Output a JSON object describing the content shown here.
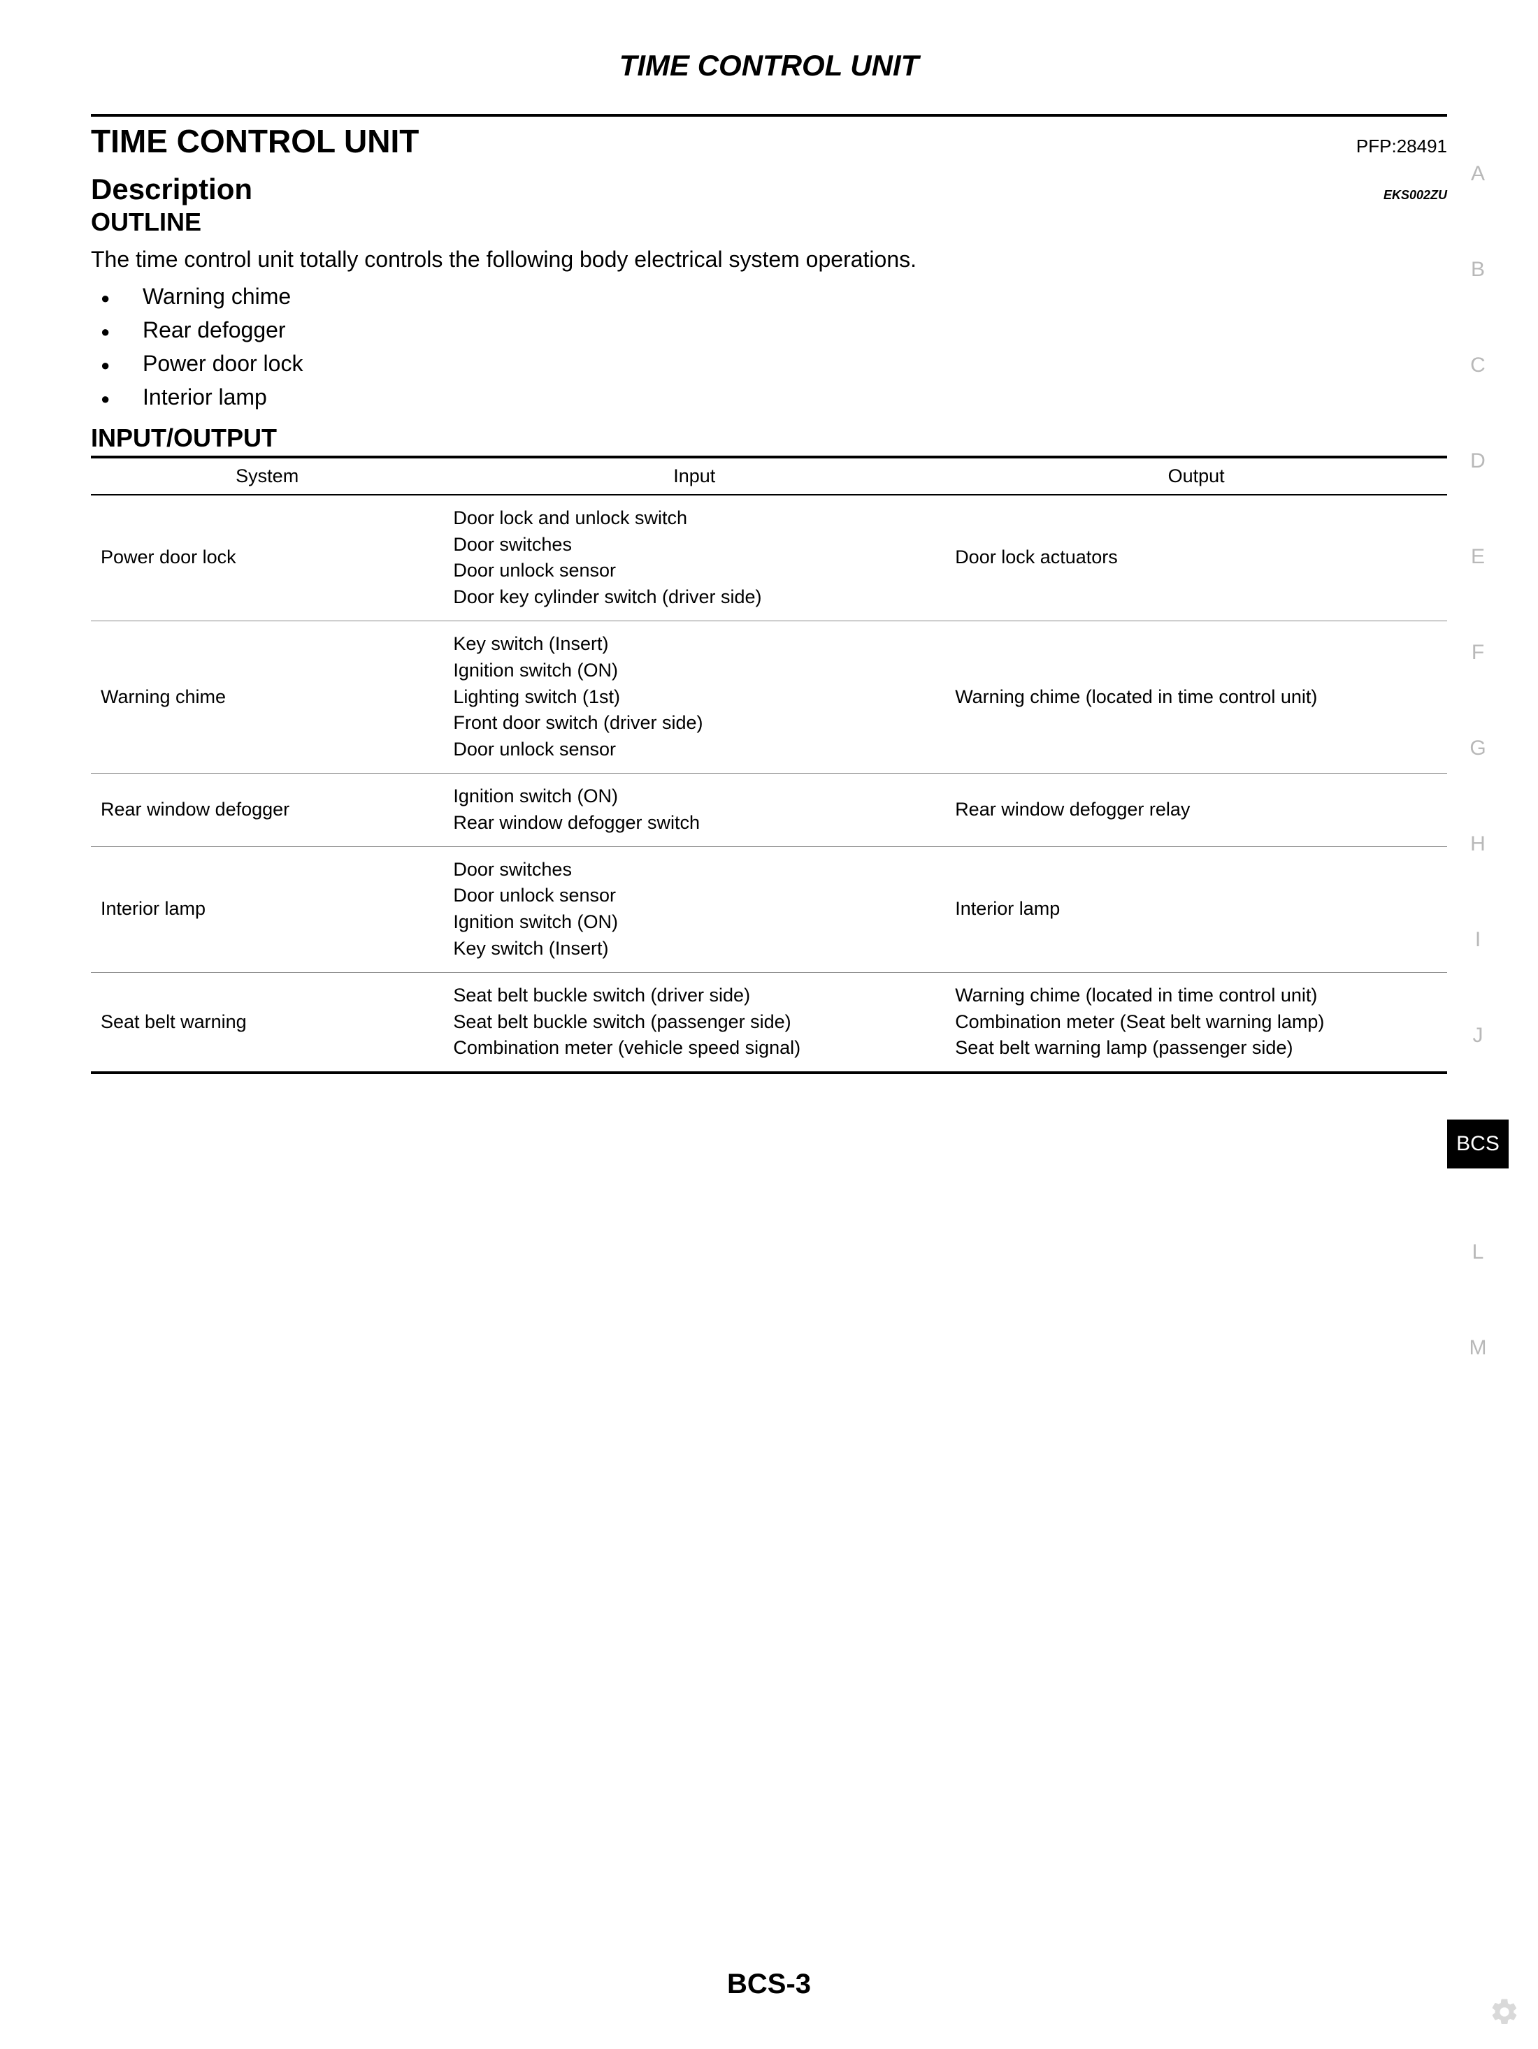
{
  "doc_title": "TIME CONTROL UNIT",
  "section_title": "TIME CONTROL UNIT",
  "pfp": "PFP:28491",
  "subsection_title": "Description",
  "refcode": "EKS002ZU",
  "h3_outline": "OUTLINE",
  "outline_text": "The time control unit totally controls the following body electrical system operations.",
  "bullets": {
    "b0": "Warning chime",
    "b1": "Rear defogger",
    "b2": "Power door lock",
    "b3": "Interior lamp"
  },
  "h3_io": "INPUT/OUTPUT",
  "table": {
    "headers": {
      "c0": "System",
      "c1": "Input",
      "c2": "Output"
    },
    "rows": {
      "r0": {
        "system": "Power door lock",
        "input": "Door lock and unlock switch\nDoor switches\nDoor unlock sensor\nDoor key cylinder switch (driver side)",
        "output": "Door lock actuators"
      },
      "r1": {
        "system": "Warning chime",
        "input": "Key switch (Insert)\nIgnition switch (ON)\nLighting switch (1st)\nFront door switch (driver side)\nDoor unlock sensor",
        "output": "Warning chime (located in time control unit)"
      },
      "r2": {
        "system": "Rear window defogger",
        "input": "Ignition switch (ON)\nRear window defogger switch",
        "output": "Rear window defogger relay"
      },
      "r3": {
        "system": "Interior lamp",
        "input": "Door switches\nDoor unlock sensor\nIgnition switch (ON)\nKey switch (Insert)",
        "output": "Interior lamp"
      },
      "r4": {
        "system": "Seat belt warning",
        "input": "Seat belt buckle switch (driver side)\nSeat belt buckle switch (passenger side)\nCombination meter (vehicle speed signal)",
        "output": "Warning chime (located in time control unit)\nCombination meter (Seat belt warning lamp)\nSeat belt warning lamp (passenger side)"
      }
    }
  },
  "tabs": {
    "t0": "A",
    "t1": "B",
    "t2": "C",
    "t3": "D",
    "t4": "E",
    "t5": "F",
    "t6": "G",
    "t7": "H",
    "t8": "I",
    "t9": "J",
    "active": "BCS",
    "t10": "L",
    "t11": "M"
  },
  "page_number": "BCS-3",
  "colors": {
    "tab_inactive": "#b8b8b8",
    "tab_active_bg": "#000000",
    "tab_active_fg": "#ffffff",
    "text": "#000000",
    "row_border": "#888888"
  }
}
